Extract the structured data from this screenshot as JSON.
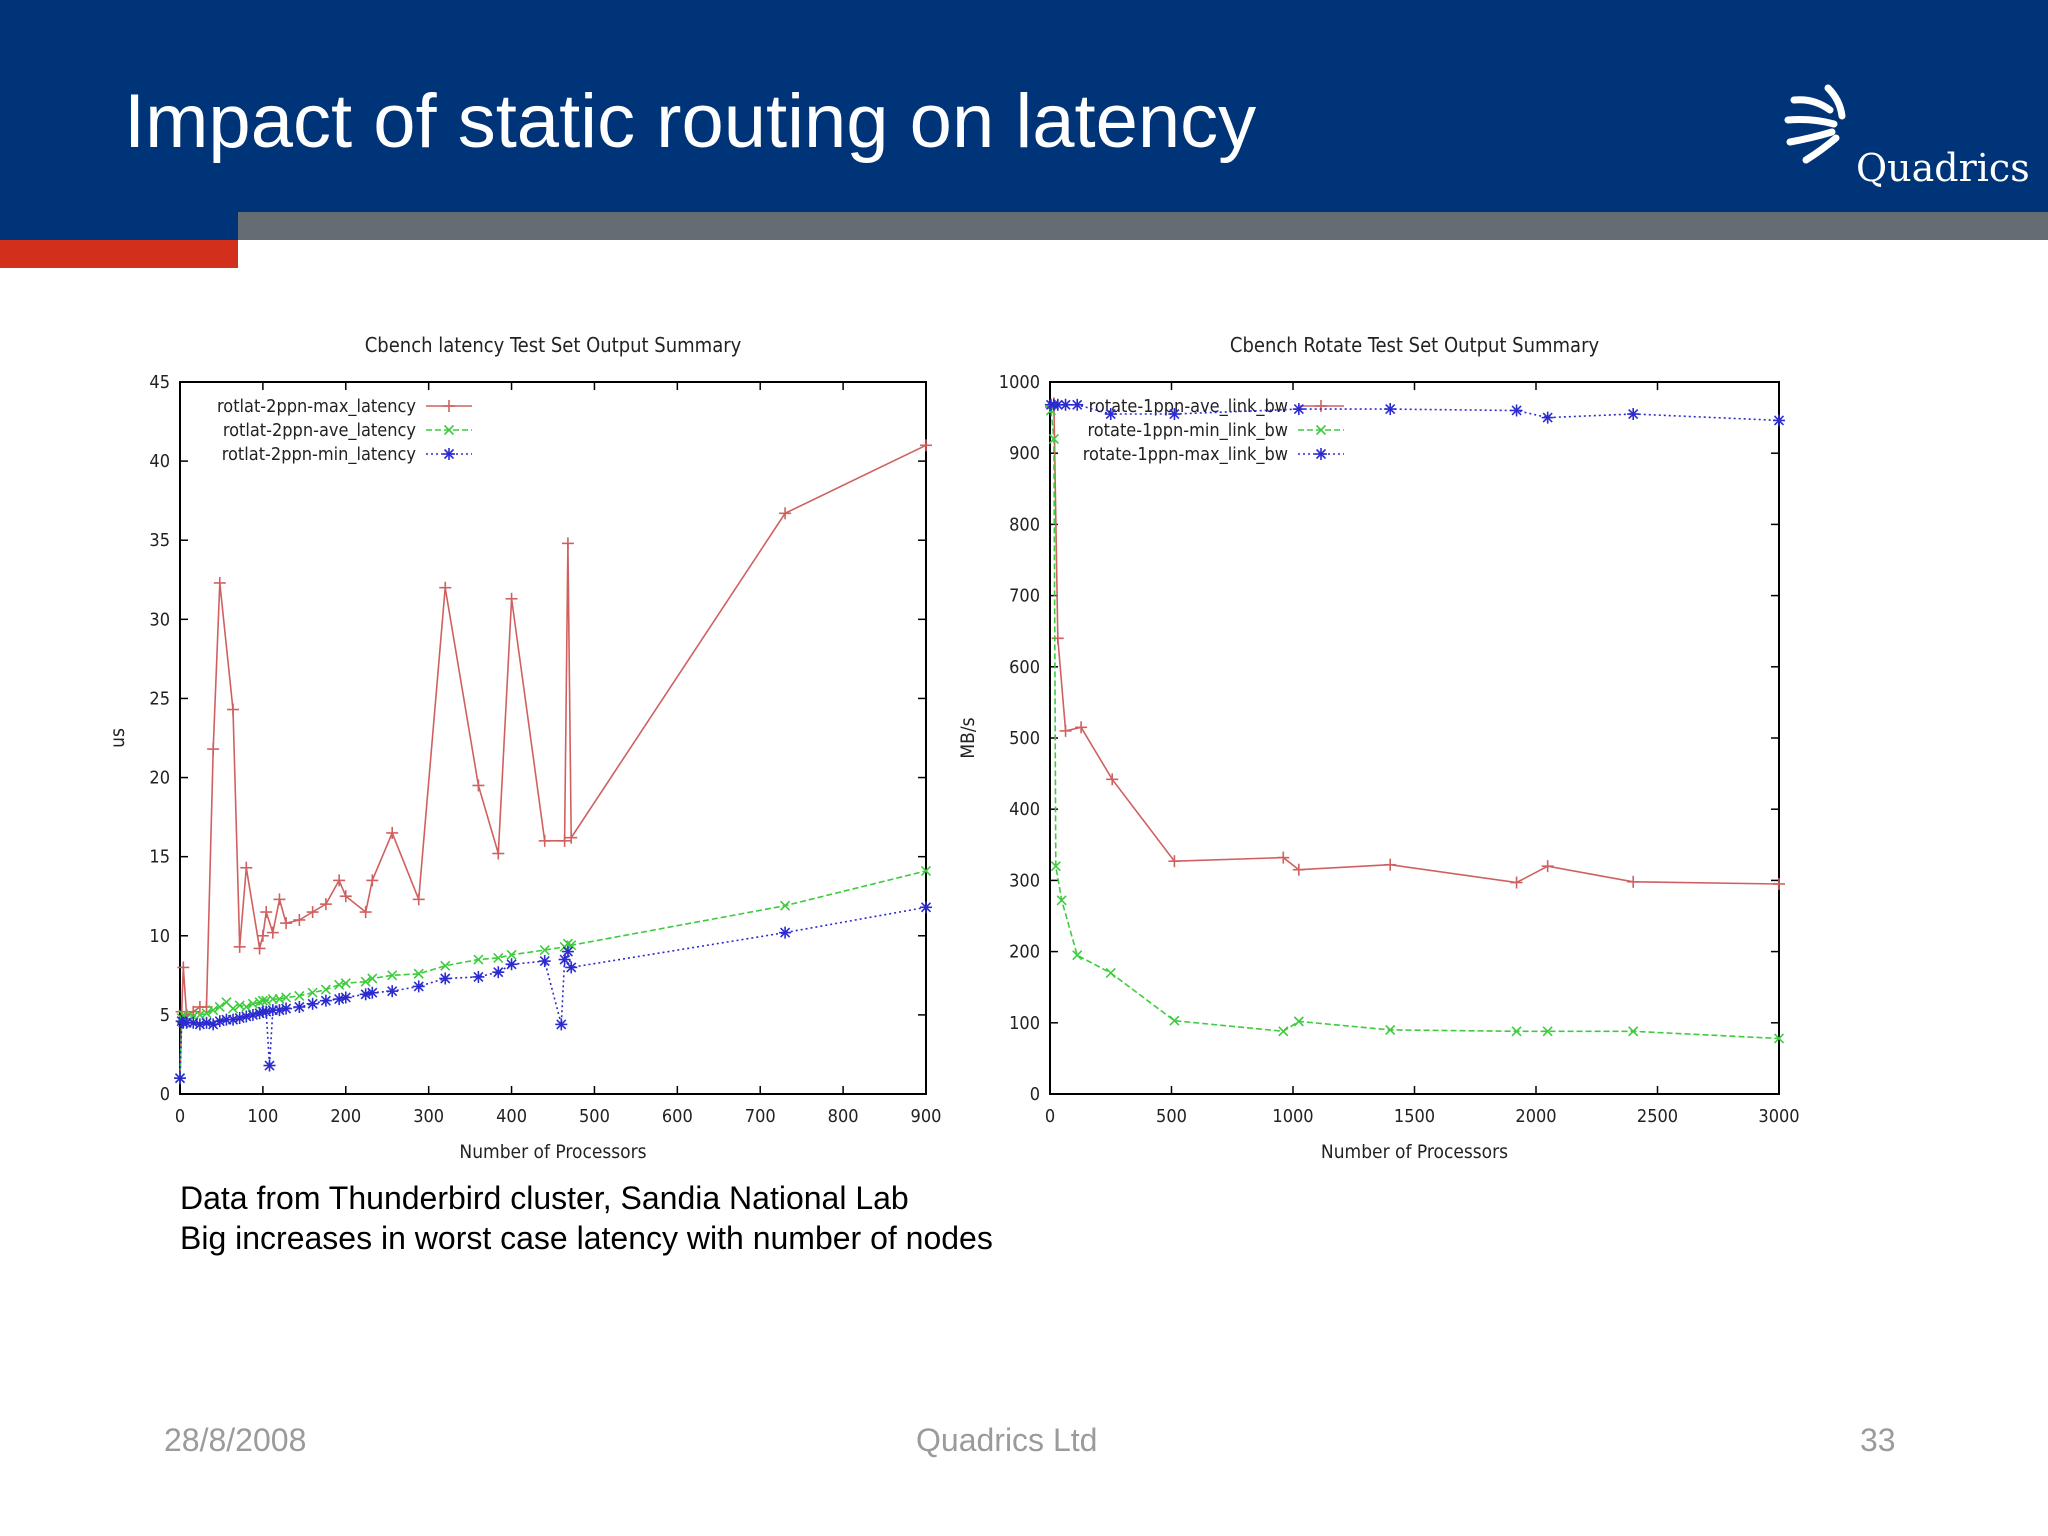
{
  "slide": {
    "title": "Impact of static routing on latency",
    "logo_text": "Quadrics",
    "description": [
      "Data from Thunderbird cluster, Sandia National Lab",
      "Big increases in worst case latency with number of nodes"
    ],
    "footer": {
      "date": "28/8/2008",
      "company": "Quadrics Ltd",
      "page": "33"
    },
    "colors": {
      "header": "#003478",
      "accent_bar": "#d2301c",
      "grey_bar": "#636d72"
    }
  },
  "chart_data": [
    {
      "type": "line",
      "title": "Cbench latency Test Set Output Summary",
      "xlabel": "Number of Processors",
      "ylabel": "us",
      "xlim": [
        0,
        900
      ],
      "ylim": [
        0,
        45
      ],
      "xticks": [
        0,
        100,
        200,
        300,
        400,
        500,
        600,
        700,
        800,
        900
      ],
      "yticks": [
        0,
        5,
        10,
        15,
        20,
        25,
        30,
        35,
        40,
        45
      ],
      "legend_position": "top-left",
      "grid": false,
      "series": [
        {
          "name": "rotlat-2ppn-max_latency",
          "color": "#d06060",
          "dash": "solid",
          "marker": "plus",
          "points": [
            [
              0,
              1
            ],
            [
              2,
              5.2
            ],
            [
              4,
              8
            ],
            [
              8,
              5
            ],
            [
              16,
              5.2
            ],
            [
              24,
              5.5
            ],
            [
              32,
              5.5
            ],
            [
              40,
              21.8
            ],
            [
              48,
              32.3
            ],
            [
              64,
              24.3
            ],
            [
              72,
              9.3
            ],
            [
              80,
              14.3
            ],
            [
              96,
              9.2
            ],
            [
              100,
              10
            ],
            [
              104,
              11.5
            ],
            [
              112,
              10.2
            ],
            [
              120,
              12.3
            ],
            [
              128,
              10.8
            ],
            [
              144,
              11
            ],
            [
              160,
              11.5
            ],
            [
              176,
              12
            ],
            [
              192,
              13.5
            ],
            [
              200,
              12.5
            ],
            [
              224,
              11.5
            ],
            [
              232,
              13.5
            ],
            [
              256,
              16.5
            ],
            [
              288,
              12.3
            ],
            [
              320,
              32
            ],
            [
              360,
              19.5
            ],
            [
              384,
              15.2
            ],
            [
              400,
              31.3
            ],
            [
              440,
              16
            ],
            [
              464,
              16
            ],
            [
              468,
              34.8
            ],
            [
              472,
              16.2
            ],
            [
              730,
              36.7
            ],
            [
              900,
              41
            ]
          ]
        },
        {
          "name": "rotlat-2ppn-ave_latency",
          "color": "#3dcc3d",
          "dash": "dashed",
          "marker": "x",
          "points": [
            [
              0,
              1
            ],
            [
              2,
              4.8
            ],
            [
              4,
              5
            ],
            [
              8,
              4.8
            ],
            [
              16,
              4.9
            ],
            [
              24,
              5
            ],
            [
              32,
              5.1
            ],
            [
              40,
              5.3
            ],
            [
              48,
              5.5
            ],
            [
              56,
              5.8
            ],
            [
              64,
              5.4
            ],
            [
              72,
              5.6
            ],
            [
              80,
              5.5
            ],
            [
              88,
              5.7
            ],
            [
              96,
              5.8
            ],
            [
              100,
              5.9
            ],
            [
              104,
              5.9
            ],
            [
              112,
              6
            ],
            [
              120,
              6
            ],
            [
              128,
              6.1
            ],
            [
              144,
              6.2
            ],
            [
              160,
              6.4
            ],
            [
              176,
              6.6
            ],
            [
              192,
              6.9
            ],
            [
              200,
              7
            ],
            [
              224,
              7.1
            ],
            [
              232,
              7.3
            ],
            [
              256,
              7.5
            ],
            [
              288,
              7.6
            ],
            [
              320,
              8.1
            ],
            [
              360,
              8.5
            ],
            [
              384,
              8.6
            ],
            [
              400,
              8.8
            ],
            [
              440,
              9.1
            ],
            [
              464,
              9.3
            ],
            [
              468,
              9.5
            ],
            [
              472,
              9.4
            ],
            [
              730,
              11.9
            ],
            [
              900,
              14.1
            ]
          ]
        },
        {
          "name": "rotlat-2ppn-min_latency",
          "color": "#2b2bd0",
          "dash": "dotted",
          "marker": "star",
          "points": [
            [
              0,
              1
            ],
            [
              2,
              4.6
            ],
            [
              4,
              4.5
            ],
            [
              8,
              4.5
            ],
            [
              16,
              4.5
            ],
            [
              24,
              4.4
            ],
            [
              32,
              4.5
            ],
            [
              40,
              4.4
            ],
            [
              48,
              4.6
            ],
            [
              56,
              4.7
            ],
            [
              64,
              4.7
            ],
            [
              72,
              4.8
            ],
            [
              80,
              4.9
            ],
            [
              88,
              5
            ],
            [
              96,
              5.1
            ],
            [
              100,
              5.2
            ],
            [
              104,
              5.2
            ],
            [
              108,
              1.8
            ],
            [
              112,
              5.3
            ],
            [
              120,
              5.3
            ],
            [
              128,
              5.4
            ],
            [
              144,
              5.5
            ],
            [
              160,
              5.7
            ],
            [
              176,
              5.9
            ],
            [
              192,
              6
            ],
            [
              200,
              6.1
            ],
            [
              224,
              6.3
            ],
            [
              232,
              6.4
            ],
            [
              256,
              6.5
            ],
            [
              288,
              6.8
            ],
            [
              320,
              7.3
            ],
            [
              360,
              7.4
            ],
            [
              384,
              7.7
            ],
            [
              400,
              8.2
            ],
            [
              440,
              8.4
            ],
            [
              460,
              4.4
            ],
            [
              464,
              8.5
            ],
            [
              468,
              9
            ],
            [
              472,
              8
            ],
            [
              730,
              10.2
            ],
            [
              900,
              11.8
            ]
          ]
        }
      ]
    },
    {
      "type": "line",
      "title": "Cbench Rotate Test Set Output Summary",
      "xlabel": "Number of Processors",
      "ylabel": "MB/s",
      "xlim": [
        0,
        3000
      ],
      "ylim": [
        0,
        1000
      ],
      "xticks": [
        0,
        500,
        1000,
        1500,
        2000,
        2500,
        3000
      ],
      "yticks": [
        0,
        100,
        200,
        300,
        400,
        500,
        600,
        700,
        800,
        900,
        1000
      ],
      "legend_position": "top-left",
      "grid": false,
      "series": [
        {
          "name": "rotate-1ppn-ave_link_bw",
          "color": "#d06060",
          "dash": "solid",
          "marker": "plus",
          "points": [
            [
              4,
              965
            ],
            [
              16,
              970
            ],
            [
              32,
              640
            ],
            [
              64,
              510
            ],
            [
              128,
              515
            ],
            [
              256,
              442
            ],
            [
              512,
              327
            ],
            [
              960,
              332
            ],
            [
              1024,
              315
            ],
            [
              1400,
              322
            ],
            [
              1920,
              297
            ],
            [
              2048,
              320
            ],
            [
              2400,
              298
            ],
            [
              3000,
              295
            ]
          ]
        },
        {
          "name": "rotate-1ppn-min_link_bw",
          "color": "#3dcc3d",
          "dash": "dashed",
          "marker": "x",
          "points": [
            [
              4,
              960
            ],
            [
              16,
              920
            ],
            [
              24,
              320
            ],
            [
              48,
              272
            ],
            [
              112,
              195
            ],
            [
              250,
              170
            ],
            [
              512,
              103
            ],
            [
              960,
              88
            ],
            [
              1024,
              102
            ],
            [
              1400,
              90
            ],
            [
              1920,
              88
            ],
            [
              2048,
              88
            ],
            [
              2400,
              88
            ],
            [
              3000,
              78
            ]
          ]
        },
        {
          "name": "rotate-1ppn-max_link_bw",
          "color": "#2b2bd0",
          "dash": "dotted",
          "marker": "star",
          "points": [
            [
              4,
              968
            ],
            [
              16,
              968
            ],
            [
              32,
              968
            ],
            [
              64,
              968
            ],
            [
              112,
              968
            ],
            [
              250,
              955
            ],
            [
              512,
              955
            ],
            [
              1024,
              962
            ],
            [
              1400,
              962
            ],
            [
              1920,
              960
            ],
            [
              2048,
              950
            ],
            [
              2400,
              955
            ],
            [
              3000,
              946
            ]
          ]
        }
      ]
    }
  ]
}
